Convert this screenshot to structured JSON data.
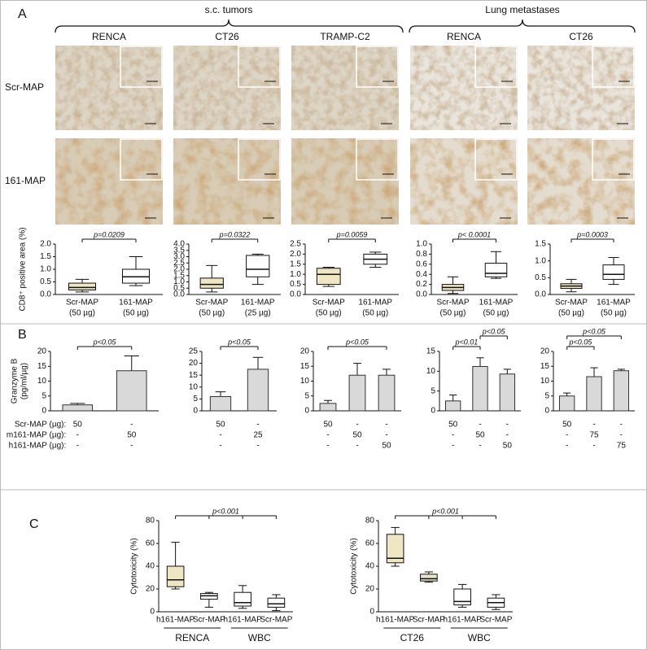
{
  "figure": {
    "panels": [
      "A",
      "B",
      "C"
    ],
    "groups": [
      "s.c. tumors",
      "Lung metastases"
    ],
    "columns": [
      "RENCA",
      "CT26",
      "TRAMP-C2",
      "RENCA",
      "CT26"
    ],
    "rows": [
      "Scr-MAP",
      "161-MAP"
    ]
  },
  "chart_data": [
    {
      "type": "box",
      "ylabel": "CD8⁺ positive area (%)",
      "categories": [
        "Scr-MAP",
        "161-MAP"
      ],
      "sublabels": [
        "(50 µg)",
        "(50 µg)"
      ],
      "colors": [
        "#efe6c4",
        "#ffffff"
      ],
      "min": [
        0.1,
        0.35
      ],
      "q1": [
        0.18,
        0.45
      ],
      "median": [
        0.28,
        0.7
      ],
      "q3": [
        0.45,
        1.0
      ],
      "max": [
        0.6,
        1.5
      ],
      "ylim": [
        0,
        2
      ],
      "yticks": [
        {
          "value": 0,
          "label": "0.0"
        },
        {
          "value": 0.5,
          "label": "0.5"
        },
        {
          "value": 1,
          "label": "1.0"
        },
        {
          "value": 1.5,
          "label": "1.5"
        },
        {
          "value": 2,
          "label": "2.0"
        }
      ],
      "brackets": [
        {
          "label": "p=0.0209",
          "between": [
            0,
            1
          ]
        }
      ]
    },
    {
      "type": "box",
      "categories": [
        "Scr-MAP",
        "161-MAP"
      ],
      "sublabels": [
        "(50 µg)",
        "(25 µg)"
      ],
      "colors": [
        "#efe6c4",
        "#ffffff"
      ],
      "min": [
        0.2,
        0.8
      ],
      "q1": [
        0.5,
        1.4
      ],
      "median": [
        0.8,
        2.0
      ],
      "q3": [
        1.3,
        3.1
      ],
      "max": [
        2.3,
        3.2
      ],
      "ylim": [
        0,
        4
      ],
      "yticks": [
        {
          "value": 0,
          "label": "0.0"
        },
        {
          "value": 0.5,
          "label": "0.5"
        },
        {
          "value": 1,
          "label": "1.0"
        },
        {
          "value": 1.5,
          "label": "1.5"
        },
        {
          "value": 2,
          "label": "2.0"
        },
        {
          "value": 2.5,
          "label": "2.5"
        },
        {
          "value": 3,
          "label": "3.0"
        },
        {
          "value": 3.5,
          "label": "3.5"
        },
        {
          "value": 4,
          "label": "4.0"
        }
      ],
      "brackets": [
        {
          "label": "p=0.0322",
          "between": [
            0,
            1
          ]
        }
      ]
    },
    {
      "type": "box",
      "categories": [
        "Scr-MAP",
        "161-MAP"
      ],
      "sublabels": [
        "(50 µg)",
        "(50 µg)"
      ],
      "colors": [
        "#efe6c4",
        "#ffffff"
      ],
      "min": [
        0.4,
        1.35
      ],
      "q1": [
        0.5,
        1.5
      ],
      "median": [
        1.0,
        1.75
      ],
      "q3": [
        1.3,
        2.0
      ],
      "max": [
        1.35,
        2.1
      ],
      "ylim": [
        0,
        2.5
      ],
      "yticks": [
        {
          "value": 0,
          "label": "0.0"
        },
        {
          "value": 0.5,
          "label": "0.5"
        },
        {
          "value": 1,
          "label": "1.0"
        },
        {
          "value": 1.5,
          "label": "1.5"
        },
        {
          "value": 2,
          "label": "2.0"
        },
        {
          "value": 2.5,
          "label": "2.5"
        }
      ],
      "brackets": [
        {
          "label": "p=0.0059",
          "between": [
            0,
            1
          ]
        }
      ]
    },
    {
      "type": "box",
      "categories": [
        "Scr-MAP",
        "161-MAP"
      ],
      "sublabels": [
        "(50 µg)",
        "(50 µg)"
      ],
      "colors": [
        "#efe6c4",
        "#ffffff"
      ],
      "min": [
        0.02,
        0.32
      ],
      "q1": [
        0.08,
        0.35
      ],
      "median": [
        0.14,
        0.42
      ],
      "q3": [
        0.2,
        0.62
      ],
      "max": [
        0.35,
        0.85
      ],
      "ylim": [
        0,
        1
      ],
      "yticks": [
        {
          "value": 0,
          "label": "0.0"
        },
        {
          "value": 0.2,
          "label": "0.2"
        },
        {
          "value": 0.4,
          "label": "0.4"
        },
        {
          "value": 0.6,
          "label": "0.6"
        },
        {
          "value": 0.8,
          "label": "0.8"
        },
        {
          "value": 1,
          "label": "1.0"
        }
      ],
      "brackets": [
        {
          "label": "p< 0.0001",
          "between": [
            0,
            1
          ]
        }
      ]
    },
    {
      "type": "box",
      "categories": [
        "Scr-MAP",
        "161-MAP"
      ],
      "sublabels": [
        "(50 µg)",
        "(50 µg)"
      ],
      "colors": [
        "#efe6c4",
        "#ffffff"
      ],
      "min": [
        0.08,
        0.3
      ],
      "q1": [
        0.18,
        0.45
      ],
      "median": [
        0.25,
        0.6
      ],
      "q3": [
        0.32,
        0.88
      ],
      "max": [
        0.45,
        1.1
      ],
      "ylim": [
        0,
        1.5
      ],
      "yticks": [
        {
          "value": 0,
          "label": "0.0"
        },
        {
          "value": 0.5,
          "label": "0.5"
        },
        {
          "value": 1,
          "label": "1.0"
        },
        {
          "value": 1.5,
          "label": "1.5"
        }
      ],
      "brackets": [
        {
          "label": "p=0.0003",
          "between": [
            0,
            1
          ]
        }
      ]
    },
    {
      "type": "bar",
      "ylabel": [
        "Granzyme B",
        "(pg/ml/µg)"
      ],
      "color": "#d9d9d9",
      "values": [
        2,
        13.5
      ],
      "errors": [
        0.5,
        5
      ],
      "ylim": [
        0,
        20
      ],
      "yticks": [
        0,
        5,
        10,
        15,
        20
      ],
      "brackets": [
        {
          "label": "p<0.05",
          "between": [
            0,
            1
          ]
        }
      ],
      "dose_rows": [
        {
          "name": "Scr-MAP (µg):",
          "values": [
            "50",
            "-"
          ]
        },
        {
          "name": "m161-MAP (µg):",
          "values": [
            "-",
            "50"
          ]
        },
        {
          "name": "h161-MAP (µg):",
          "values": [
            "-",
            "-"
          ]
        }
      ]
    },
    {
      "type": "bar",
      "color": "#d9d9d9",
      "values": [
        6,
        17.5
      ],
      "errors": [
        2,
        5
      ],
      "ylim": [
        0,
        25
      ],
      "yticks": [
        0,
        5,
        10,
        15,
        20,
        25
      ],
      "brackets": [
        {
          "label": "p<0.05",
          "between": [
            0,
            1
          ]
        }
      ],
      "dose_rows": [
        {
          "values": [
            "50",
            "-"
          ]
        },
        {
          "values": [
            "-",
            "25"
          ]
        },
        {
          "values": [
            "-",
            "-"
          ]
        }
      ]
    },
    {
      "type": "bar",
      "color": "#d9d9d9",
      "values": [
        2.5,
        12,
        12
      ],
      "errors": [
        1,
        4,
        2
      ],
      "ylim": [
        0,
        20
      ],
      "yticks": [
        0,
        5,
        10,
        15,
        20
      ],
      "brackets": [
        {
          "label": "p<0.05",
          "between": [
            0,
            2
          ]
        }
      ],
      "dose_rows": [
        {
          "values": [
            "50",
            "-",
            "-"
          ]
        },
        {
          "values": [
            "-",
            "50",
            "-"
          ]
        },
        {
          "values": [
            "-",
            "-",
            "50"
          ]
        }
      ]
    },
    {
      "type": "bar",
      "color": "#d9d9d9",
      "values": [
        2.5,
        11.2,
        9.3
      ],
      "errors": [
        1.5,
        2.2,
        1.2
      ],
      "ylim": [
        0,
        15
      ],
      "yticks": [
        0,
        5,
        10,
        15
      ],
      "brackets": [
        {
          "label": "p<0.01",
          "between": [
            0,
            1
          ]
        },
        {
          "label": "p<0.05",
          "between": [
            1,
            2
          ]
        }
      ],
      "dose_rows": [
        {
          "values": [
            "50",
            "-",
            "-"
          ]
        },
        {
          "values": [
            "-",
            "50",
            "-"
          ]
        },
        {
          "values": [
            "-",
            "-",
            "50"
          ]
        }
      ]
    },
    {
      "type": "bar",
      "color": "#d9d9d9",
      "values": [
        5,
        11.5,
        13.5
      ],
      "errors": [
        1,
        3,
        0.5
      ],
      "ylim": [
        0,
        20
      ],
      "yticks": [
        0,
        5,
        10,
        15,
        20
      ],
      "brackets": [
        {
          "label": "p<0.05",
          "between": [
            0,
            1
          ]
        },
        {
          "label": "p<0.05",
          "between": [
            0,
            2
          ]
        }
      ],
      "dose_rows": [
        {
          "values": [
            "50",
            "-",
            "-"
          ]
        },
        {
          "values": [
            "-",
            "75",
            "-"
          ]
        },
        {
          "values": [
            "-",
            "-",
            "75"
          ]
        }
      ]
    },
    {
      "type": "box",
      "ylabel": "Cytotoxicity (%)",
      "categories": [
        "h161-MAP",
        "Scr-MAP",
        "h161-MAP",
        "Scr-MAP"
      ],
      "colors": [
        "#efe6c4",
        "#ffffff",
        "#ffffff",
        "#ffffff"
      ],
      "min": [
        20,
        4,
        3,
        1
      ],
      "q1": [
        22,
        11,
        5,
        4
      ],
      "median": [
        28,
        14,
        8,
        7
      ],
      "q3": [
        40,
        16,
        17,
        12
      ],
      "max": [
        61,
        17,
        23,
        15
      ],
      "ylim": [
        0,
        80
      ],
      "yticks": [
        0,
        20,
        40,
        60,
        80
      ],
      "brackets": [
        {
          "label": "p<0.001",
          "between": [
            0,
            1,
            2,
            3
          ]
        }
      ],
      "groups": [
        {
          "label": "RENCA",
          "span": [
            0,
            1
          ]
        },
        {
          "label": "WBC",
          "span": [
            2,
            3
          ]
        }
      ]
    },
    {
      "type": "box",
      "ylabel": "Cytotoxicity (%)",
      "categories": [
        "h161-MAP",
        "Scr-MAP",
        "h161-MAP",
        "Scr-MAP"
      ],
      "colors": [
        "#efe6c4",
        "#e9e3cf",
        "#ffffff",
        "#ffffff"
      ],
      "min": [
        40,
        26,
        4,
        2
      ],
      "q1": [
        43,
        27,
        6,
        4
      ],
      "median": [
        47,
        29,
        9,
        8
      ],
      "q3": [
        68,
        33,
        20,
        12
      ],
      "max": [
        74,
        35,
        24,
        15
      ],
      "ylim": [
        0,
        80
      ],
      "yticks": [
        0,
        20,
        40,
        60,
        80
      ],
      "brackets": [
        {
          "label": "p<0.001",
          "between": [
            0,
            1,
            2,
            3
          ]
        }
      ],
      "groups": [
        {
          "label": "CT26",
          "span": [
            0,
            1
          ]
        },
        {
          "label": "WBC",
          "span": [
            2,
            3
          ]
        }
      ]
    }
  ]
}
